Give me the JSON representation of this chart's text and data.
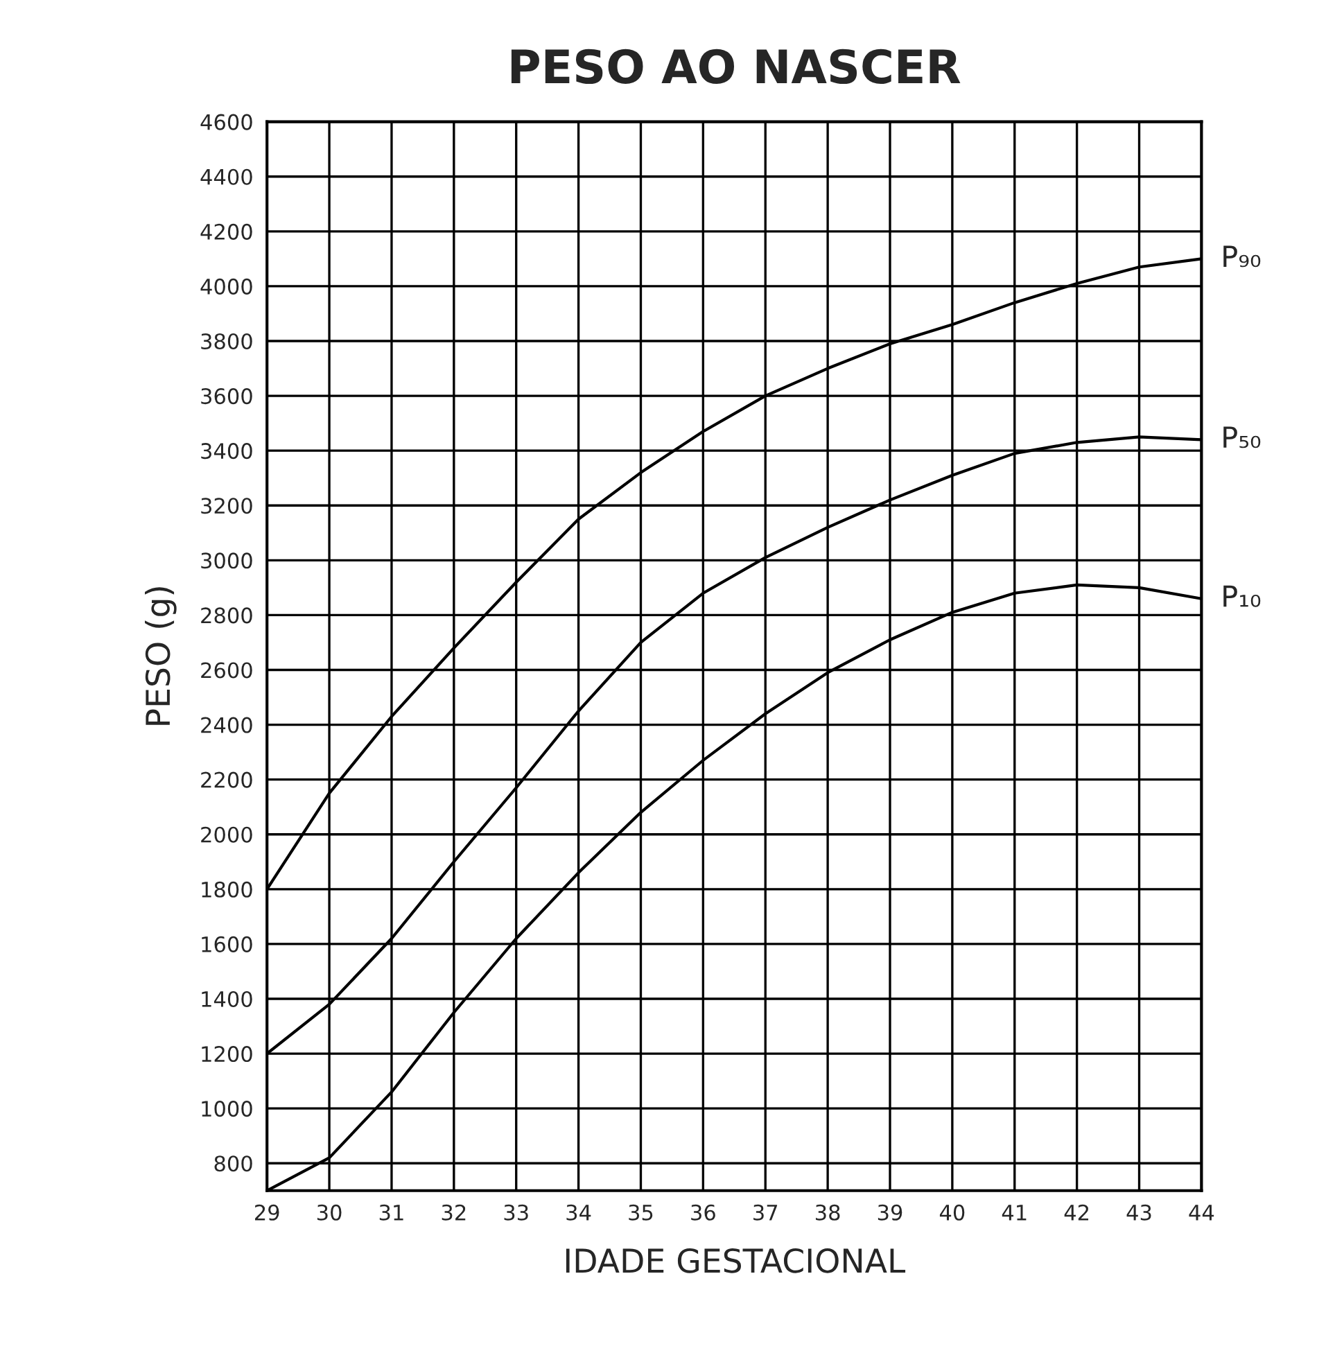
{
  "chart_data": {
    "type": "line",
    "title": "PESO AO NASCER",
    "xlabel": "IDADE GESTACIONAL",
    "ylabel": "PESO (g)",
    "x": [
      29,
      30,
      31,
      32,
      33,
      34,
      35,
      36,
      37,
      38,
      39,
      40,
      41,
      42,
      43,
      44
    ],
    "series": [
      {
        "name": "P₉₀",
        "color": "#000000",
        "values": [
          1800,
          2150,
          2430,
          2680,
          2920,
          3150,
          3320,
          3470,
          3600,
          3700,
          3790,
          3860,
          3940,
          4010,
          4070,
          4100
        ]
      },
      {
        "name": "P₅₀",
        "color": "#000000",
        "values": [
          1200,
          1380,
          1620,
          1900,
          2170,
          2450,
          2700,
          2880,
          3010,
          3120,
          3220,
          3310,
          3390,
          3430,
          3450,
          3440
        ]
      },
      {
        "name": "P₁₀",
        "color": "#000000",
        "values": [
          700,
          820,
          1060,
          1350,
          1620,
          1860,
          2080,
          2270,
          2440,
          2590,
          2710,
          2810,
          2880,
          2910,
          2900,
          2860
        ]
      }
    ],
    "xlim": [
      29,
      44
    ],
    "xticks": [
      29,
      30,
      31,
      32,
      33,
      34,
      35,
      36,
      37,
      38,
      39,
      40,
      41,
      42,
      43,
      44
    ],
    "ylim": [
      700,
      4600
    ],
    "yticks": [
      800,
      1000,
      1200,
      1400,
      1600,
      1800,
      2000,
      2200,
      2400,
      2600,
      2800,
      3000,
      3200,
      3400,
      3600,
      3800,
      4000,
      4200,
      4400,
      4600
    ],
    "grid": true,
    "legend": false,
    "marker": "none",
    "line_style": "solid"
  }
}
